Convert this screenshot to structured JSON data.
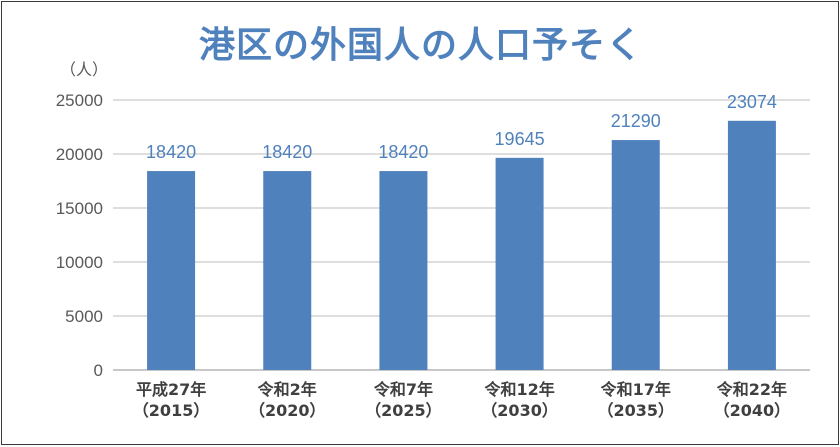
{
  "chart_data": {
    "type": "bar",
    "title": "港区の外国人の人口予そく",
    "ylabel": "（人）",
    "xlabel": "",
    "categories": [
      [
        "平成27年",
        "（2015）"
      ],
      [
        "令和2年",
        "（2020）"
      ],
      [
        "令和7年",
        "（2025）"
      ],
      [
        "令和12年",
        "（2030）"
      ],
      [
        "令和17年",
        "（2035）"
      ],
      [
        "令和22年",
        "（2040）"
      ]
    ],
    "values": [
      18420,
      18420,
      18420,
      19645,
      21290,
      23074
    ],
    "ylim": [
      0,
      25000
    ],
    "yticks": [
      0,
      5000,
      10000,
      15000,
      20000,
      25000
    ],
    "grid": true,
    "bar_color": "#4f81bd",
    "label_color": "#4f81bd"
  }
}
